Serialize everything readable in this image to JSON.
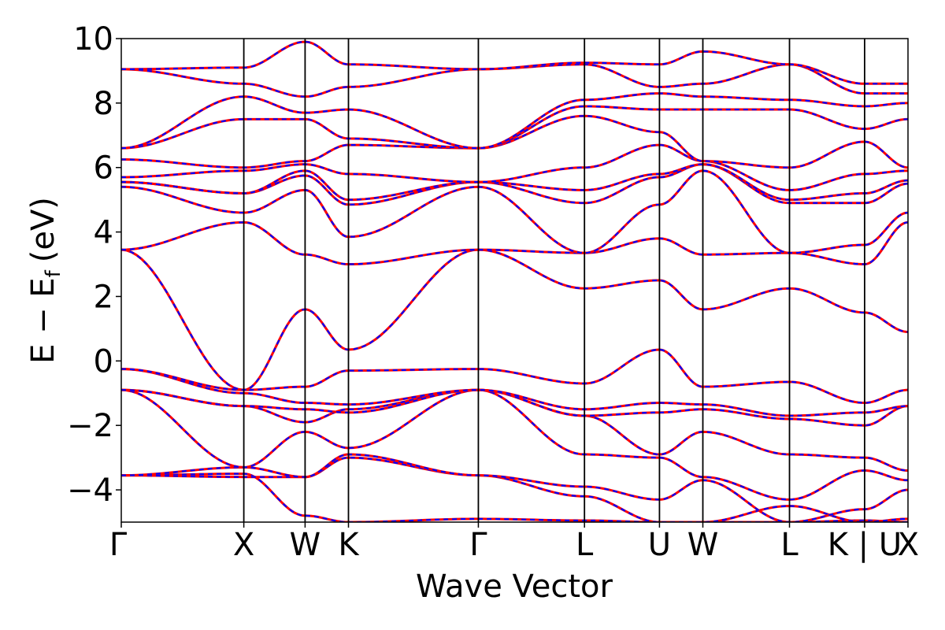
{
  "chart_data": {
    "type": "line",
    "title": "",
    "xlabel": "Wave Vector",
    "ylabel": "E − E",
    "ylabel_sub": "f",
    "ylabel_unit": "(eV)",
    "ylim": [
      -5,
      10
    ],
    "yticks": [
      {
        "value": 10,
        "label": "10"
      },
      {
        "value": 8,
        "label": "8"
      },
      {
        "value": 6,
        "label": "6"
      },
      {
        "value": 4,
        "label": "4"
      },
      {
        "value": 2,
        "label": "2"
      },
      {
        "value": 0,
        "label": "0"
      },
      {
        "value": -2,
        "label": "−2"
      },
      {
        "value": -4,
        "label": "−4"
      }
    ],
    "kpath": [
      {
        "label": "Γ",
        "k": 0.0
      },
      {
        "label": "X",
        "k": 1.0
      },
      {
        "label": "W",
        "k": 1.5
      },
      {
        "label": "K",
        "k": 1.854
      },
      {
        "label": "Γ",
        "k": 2.914
      },
      {
        "label": "L",
        "k": 3.78
      },
      {
        "label": "U",
        "k": 4.392
      },
      {
        "label": "W",
        "k": 4.746
      },
      {
        "label": "L",
        "k": 5.453
      },
      {
        "label": "K | U",
        "k": 6.066
      },
      {
        "label": "X",
        "k": 6.42
      }
    ],
    "grid": false,
    "colors": {
      "series_a": "#ff0000",
      "series_b": "#0000ff",
      "axes": "#000000"
    },
    "series_styles": [
      {
        "color": "#ff0000",
        "style": "solid"
      },
      {
        "color": "#0000ff",
        "style": "dashed"
      }
    ],
    "bands": [
      [
        -3.55,
        -3.5,
        -4.8,
        -5.0,
        -4.9,
        -4.95,
        -5.0,
        -5.0,
        -5.0,
        -4.95,
        -5.0
      ],
      [
        -3.55,
        -3.6,
        -3.6,
        -3.0,
        -3.55,
        -4.2,
        -5.0,
        -5.0,
        -4.5,
        -5.0,
        -4.9
      ],
      [
        -3.55,
        -3.3,
        -3.6,
        -2.9,
        -3.55,
        -3.9,
        -4.3,
        -3.7,
        -5.0,
        -4.6,
        -4.0
      ],
      [
        -0.9,
        -3.3,
        -2.2,
        -2.7,
        -0.9,
        -2.9,
        -3.0,
        -3.6,
        -4.3,
        -3.4,
        -3.7
      ],
      [
        -0.9,
        -1.4,
        -1.9,
        -1.5,
        -0.9,
        -1.7,
        -2.9,
        -2.2,
        -2.9,
        -3.0,
        -3.4
      ],
      [
        -0.9,
        -1.4,
        -1.5,
        -1.6,
        -0.9,
        -1.7,
        -1.6,
        -1.5,
        -1.8,
        -2.0,
        -1.4
      ],
      [
        -0.25,
        -1.0,
        -1.3,
        -1.35,
        -0.9,
        -1.5,
        -1.3,
        -1.35,
        -1.7,
        -1.6,
        -1.4
      ],
      [
        -0.25,
        -0.9,
        -0.8,
        -0.3,
        -0.25,
        -0.7,
        0.35,
        -0.8,
        -0.65,
        -1.3,
        -0.9
      ],
      [
        3.45,
        -0.9,
        1.6,
        0.35,
        3.45,
        2.25,
        2.5,
        1.6,
        2.25,
        1.5,
        0.9
      ],
      [
        3.45,
        4.3,
        3.3,
        3.0,
        3.45,
        3.35,
        3.8,
        3.3,
        3.35,
        3.0,
        4.3
      ],
      [
        5.4,
        4.6,
        5.3,
        3.85,
        5.4,
        3.35,
        4.85,
        5.9,
        3.35,
        3.6,
        4.6
      ],
      [
        5.55,
        5.2,
        5.75,
        4.85,
        5.55,
        4.9,
        5.7,
        6.1,
        4.9,
        4.9,
        5.5
      ],
      [
        5.55,
        5.2,
        5.9,
        5.0,
        5.55,
        5.3,
        5.8,
        6.1,
        5.0,
        5.2,
        5.6
      ],
      [
        5.7,
        5.9,
        6.1,
        5.8,
        5.55,
        6.0,
        6.7,
        6.2,
        5.3,
        5.8,
        5.9
      ],
      [
        6.25,
        6.0,
        6.2,
        6.7,
        6.6,
        7.6,
        7.1,
        6.2,
        6.0,
        6.8,
        6.0
      ],
      [
        6.6,
        7.5,
        7.5,
        6.9,
        6.6,
        7.9,
        7.8,
        7.8,
        7.8,
        7.2,
        7.5
      ],
      [
        6.6,
        8.2,
        7.7,
        7.8,
        6.6,
        8.1,
        8.3,
        8.2,
        8.1,
        7.9,
        8.0
      ],
      [
        9.05,
        8.6,
        8.2,
        8.5,
        9.05,
        9.2,
        8.5,
        8.6,
        9.2,
        8.3,
        8.3
      ],
      [
        9.05,
        9.1,
        9.9,
        9.2,
        9.05,
        9.25,
        9.2,
        9.6,
        9.2,
        8.6,
        8.6
      ]
    ]
  }
}
